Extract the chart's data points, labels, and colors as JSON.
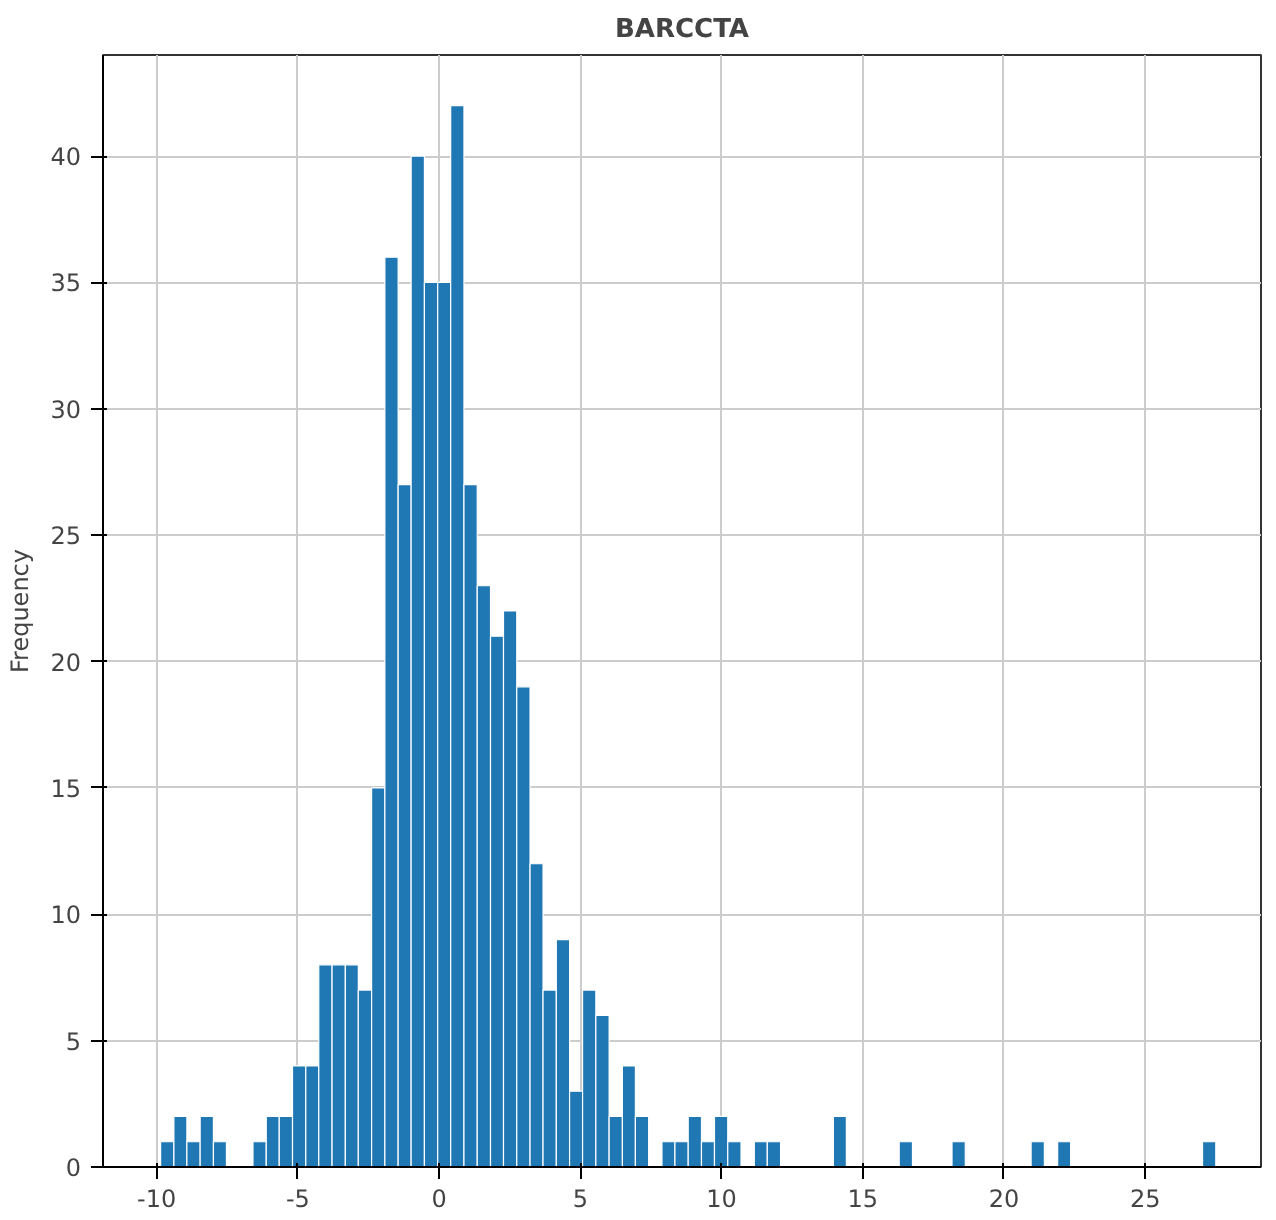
{
  "chart_data": {
    "type": "histogram",
    "title": "BARCCTA",
    "ylabel": "Frequency",
    "color": "#1f77b4",
    "bins": [
      -9.86,
      -9.39,
      -8.93,
      -8.46,
      -7.99,
      -7.53,
      -7.06,
      -6.59,
      -6.12,
      -5.66,
      -5.19,
      -4.72,
      -4.26,
      -3.79,
      -3.32,
      -2.86,
      -2.39,
      -1.92,
      -1.45,
      -0.99,
      -0.52,
      -0.05,
      0.41,
      0.88,
      1.35,
      1.82,
      2.28,
      2.75,
      3.22,
      3.68,
      4.15,
      4.62,
      5.08,
      5.55,
      6.02,
      6.49,
      6.95,
      7.42,
      7.89,
      8.35,
      8.82,
      9.29,
      9.75,
      10.22,
      10.69,
      11.16,
      11.62,
      12.09,
      12.56,
      13.02,
      13.49,
      13.96,
      14.42,
      14.89,
      15.36,
      15.83,
      16.29,
      16.76,
      17.23,
      17.69,
      18.16,
      18.63,
      19.09,
      19.56,
      20.03,
      20.5,
      20.96,
      21.43,
      21.9,
      22.36,
      22.83,
      23.3,
      23.76,
      24.23,
      24.7,
      25.17,
      25.63,
      26.1,
      26.57,
      27.03,
      27.5
    ],
    "values": [
      1,
      2,
      1,
      2,
      1,
      0,
      0,
      1,
      2,
      2,
      4,
      4,
      8,
      8,
      8,
      7,
      15,
      36,
      27,
      40,
      35,
      35,
      42,
      27,
      23,
      21,
      22,
      19,
      12,
      7,
      9,
      3,
      7,
      6,
      2,
      4,
      2,
      0,
      1,
      1,
      2,
      1,
      2,
      1,
      0,
      1,
      1,
      0,
      0,
      0,
      0,
      2,
      0,
      0,
      0,
      0,
      1,
      0,
      0,
      0,
      1,
      0,
      0,
      0,
      0,
      0,
      1,
      0,
      1,
      0,
      0,
      0,
      0,
      0,
      0,
      0,
      0,
      0,
      0,
      1
    ],
    "xlim": [
      -11.9,
      29.1
    ],
    "ylim": [
      0,
      44
    ],
    "xticks": [
      -10,
      -5,
      0,
      5,
      10,
      15,
      20,
      25
    ],
    "yticks": [
      0,
      5,
      10,
      15,
      20,
      25,
      30,
      35,
      40
    ],
    "grid": true
  }
}
